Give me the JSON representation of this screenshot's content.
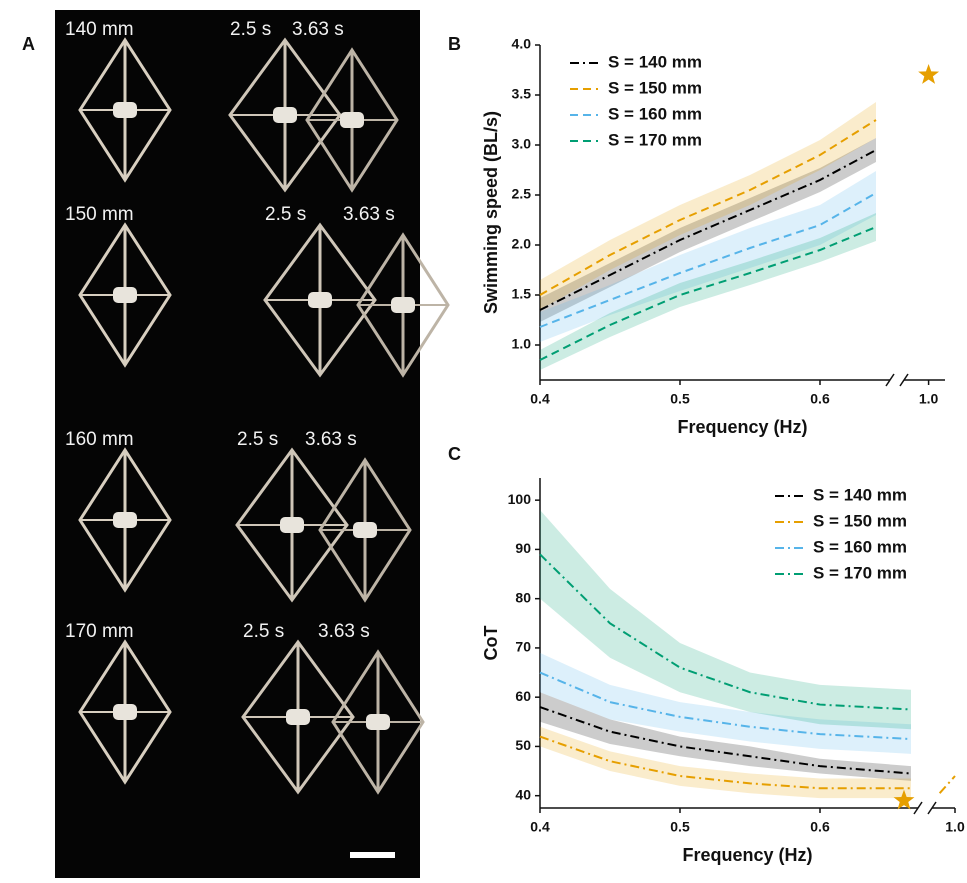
{
  "panel_labels": [
    "A",
    "B",
    "C"
  ],
  "photo_panel": {
    "rows": [
      {
        "size": "140 mm",
        "t1": "2.5 s",
        "t2": "3.63 s"
      },
      {
        "size": "150 mm",
        "t1": "2.5 s",
        "t2": "3.63 s"
      },
      {
        "size": "160 mm",
        "t1": "2.5 s",
        "t2": "3.63 s"
      },
      {
        "size": "170 mm",
        "t1": "2.5 s",
        "t2": "3.63 s"
      }
    ]
  },
  "chart_data": [
    {
      "type": "line",
      "xlabel": "Frequency (Hz)",
      "ylabel": "Swimming speed (BL/s)",
      "x": [
        0.4,
        0.45,
        0.5,
        0.55,
        0.6,
        0.64
      ],
      "xlim": [
        0.4,
        1.02
      ],
      "xbreak": [
        0.65,
        0.97
      ],
      "xticks": [
        0.4,
        0.5,
        0.6,
        {
          "value": 1,
          "label": "1.0"
        }
      ],
      "ylim": [
        0.65,
        4.0
      ],
      "yticks": [
        {
          "value": 1,
          "label": "1.0"
        },
        1.5,
        {
          "value": 2,
          "label": "2.0"
        },
        2.5,
        {
          "value": 3,
          "label": "3.0"
        },
        3.5,
        {
          "value": 4,
          "label": "4.0"
        }
      ],
      "legend": "upper left",
      "series": [
        {
          "name": "S = 140 mm",
          "color": "#000000",
          "dash": "dashdot",
          "values": [
            1.35,
            1.7,
            2.05,
            2.35,
            2.65,
            2.95
          ],
          "errors": [
            0.12,
            0.12,
            0.12,
            0.12,
            0.12,
            0.12
          ]
        },
        {
          "name": "S = 150 mm",
          "color": "#e69f00",
          "dash": "dashed",
          "values": [
            1.5,
            1.9,
            2.25,
            2.55,
            2.9,
            3.25
          ],
          "errors": [
            0.15,
            0.15,
            0.15,
            0.15,
            0.15,
            0.18
          ]
        },
        {
          "name": "S = 160 mm",
          "color": "#56b4e9",
          "dash": "dashed",
          "values": [
            1.18,
            1.45,
            1.72,
            1.97,
            2.2,
            2.52
          ],
          "errors": [
            0.15,
            0.15,
            0.18,
            0.2,
            0.2,
            0.22
          ]
        },
        {
          "name": "S = 170 mm",
          "color": "#009e73",
          "dash": "dashed",
          "values": [
            0.85,
            1.2,
            1.5,
            1.72,
            1.95,
            2.18
          ],
          "errors": [
            0.1,
            0.12,
            0.12,
            0.12,
            0.12,
            0.14
          ]
        }
      ],
      "marker": {
        "x": 1,
        "y": 3.7,
        "color": "#e69f00"
      }
    },
    {
      "type": "line",
      "xlabel": "Frequency (Hz)",
      "ylabel": "CoT",
      "x": [
        0.4,
        0.45,
        0.5,
        0.55,
        0.6,
        0.665,
        0.98,
        1.0
      ],
      "xlim": [
        0.4,
        1.0
      ],
      "xbreak": [
        0.67,
        0.97
      ],
      "xticks": [
        0.4,
        0.5,
        0.6,
        {
          "value": 1,
          "label": "1.0"
        }
      ],
      "ylim": [
        37.5,
        104.5
      ],
      "yticks": [
        40,
        50,
        60,
        70,
        80,
        90,
        100
      ],
      "legend": "upper right",
      "series": [
        {
          "name": "S = 140 mm",
          "color": "#000000",
          "dash": "dashdot",
          "values": [
            58,
            53,
            50,
            48,
            46,
            44.5,
            null,
            null
          ],
          "errors": [
            3,
            2.5,
            2,
            2,
            1.5,
            1.5,
            null,
            null
          ]
        },
        {
          "name": "S = 150 mm",
          "color": "#e69f00",
          "dash": "dashdot",
          "values": [
            52,
            47,
            44,
            42.5,
            41.5,
            41.5,
            40.5,
            44
          ],
          "errors": [
            2,
            2,
            2,
            2,
            2,
            2,
            null,
            null
          ]
        },
        {
          "name": "S = 160 mm",
          "color": "#56b4e9",
          "dash": "dashdot",
          "values": [
            65,
            59,
            56,
            54,
            52.5,
            51.5,
            null,
            null
          ],
          "errors": [
            4,
            3.5,
            3,
            3,
            3,
            3,
            null,
            null
          ]
        },
        {
          "name": "S = 170 mm",
          "color": "#009e73",
          "dash": "dashdot",
          "values": [
            89,
            75,
            66,
            61,
            58.5,
            57.5,
            null,
            null
          ],
          "errors": [
            9,
            7,
            5,
            4,
            4,
            4,
            null,
            null
          ]
        }
      ],
      "marker": {
        "x": 0.66,
        "y": 39,
        "color": "#e69f00"
      }
    }
  ]
}
